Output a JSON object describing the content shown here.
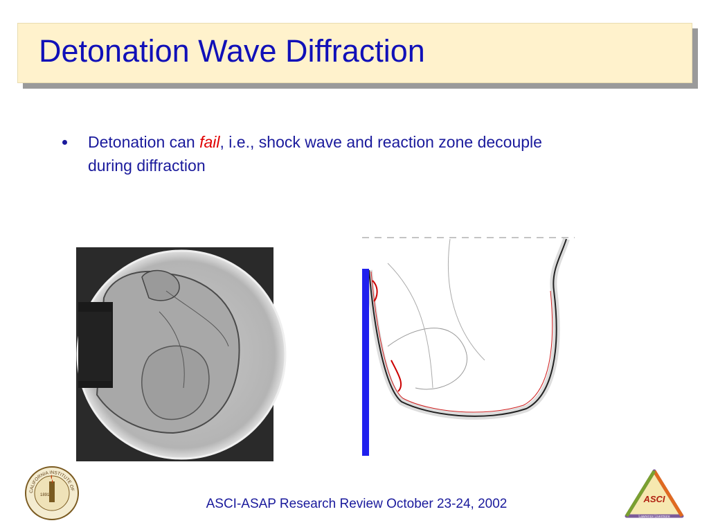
{
  "title": "Detonation Wave Diffraction",
  "bullets": [
    {
      "parts": [
        "Detonation can ",
        "fail",
        ", i.e., shock wave and reaction zone decouple during diffraction"
      ]
    }
  ],
  "footer": "ASCI-ASAP Research Review October 23-24, 2002",
  "logos": {
    "caltech": {
      "name": "CALIFORNIA INSTITUTE OF TECHNOLOGY",
      "year": "1891"
    },
    "asci": {
      "name": "ASCI",
      "lab": "Lawrence Livermore"
    }
  }
}
